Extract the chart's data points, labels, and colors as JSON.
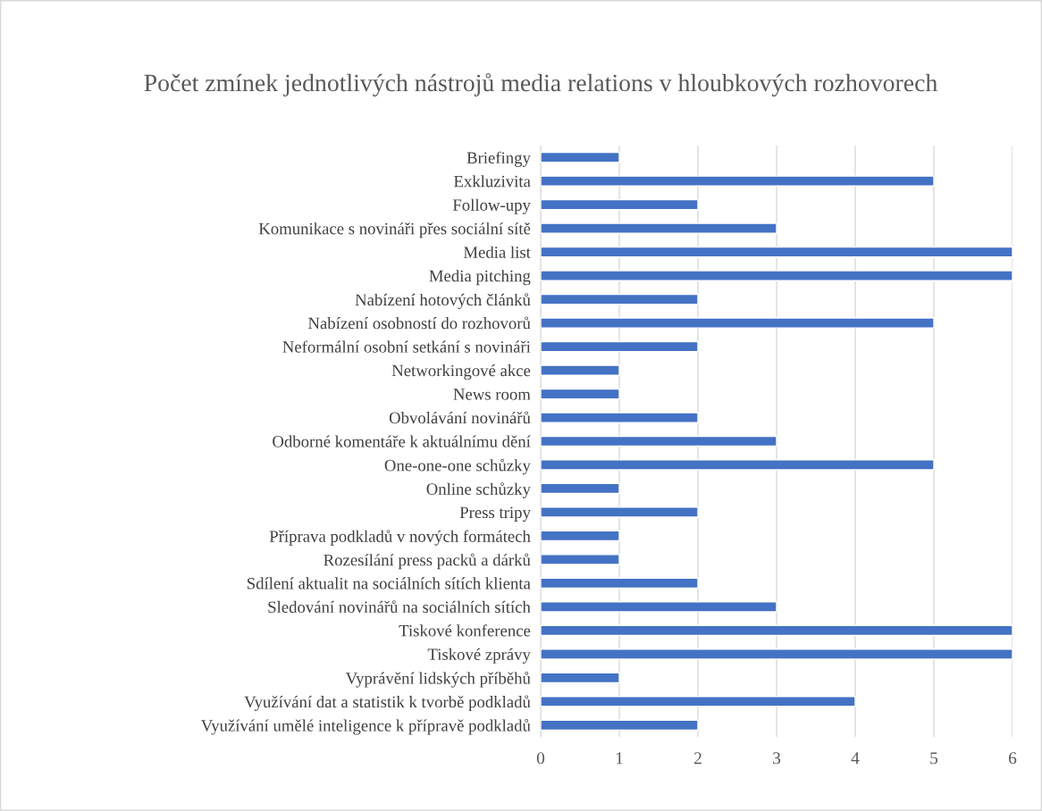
{
  "chart_data": {
    "type": "bar",
    "orientation": "horizontal",
    "title": "Počet zmínek jednotlivých nástrojů media relations v hloubkových rozhovorech",
    "categories": [
      "Briefingy",
      "Exkluzivita",
      "Follow-upy",
      "Komunikace s novináři přes sociální sítě",
      "Media list",
      "Media pitching",
      "Nabízení hotových článků",
      "Nabízení osobností do rozhovorů",
      "Neformální osobní setkání s novináři",
      "Networkingové akce",
      "News room",
      "Obvolávání novinářů",
      "Odborné komentáře k aktuálnímu dění",
      "One-one-one schůzky",
      "Online schůzky",
      "Press tripy",
      "Příprava podkladů v nových formátech",
      "Rozesílání press packů a dárků",
      "Sdílení aktualit na sociálních sítích klienta",
      "Sledování novinářů na sociálních sítích",
      "Tiskové konference",
      "Tiskové zprávy",
      "Vyprávění lidských příběhů",
      "Využívání dat a statistik k tvorbě podkladů",
      "Využívání umělé inteligence k přípravě podkladů"
    ],
    "values": [
      1,
      5,
      2,
      3,
      6,
      6,
      2,
      5,
      2,
      1,
      1,
      2,
      3,
      5,
      1,
      2,
      1,
      1,
      2,
      3,
      6,
      6,
      1,
      4,
      2
    ],
    "color": "#4472c4",
    "xlim": [
      0,
      6
    ],
    "xticks": [
      0,
      1,
      2,
      3,
      4,
      5,
      6
    ],
    "grid": "x"
  }
}
